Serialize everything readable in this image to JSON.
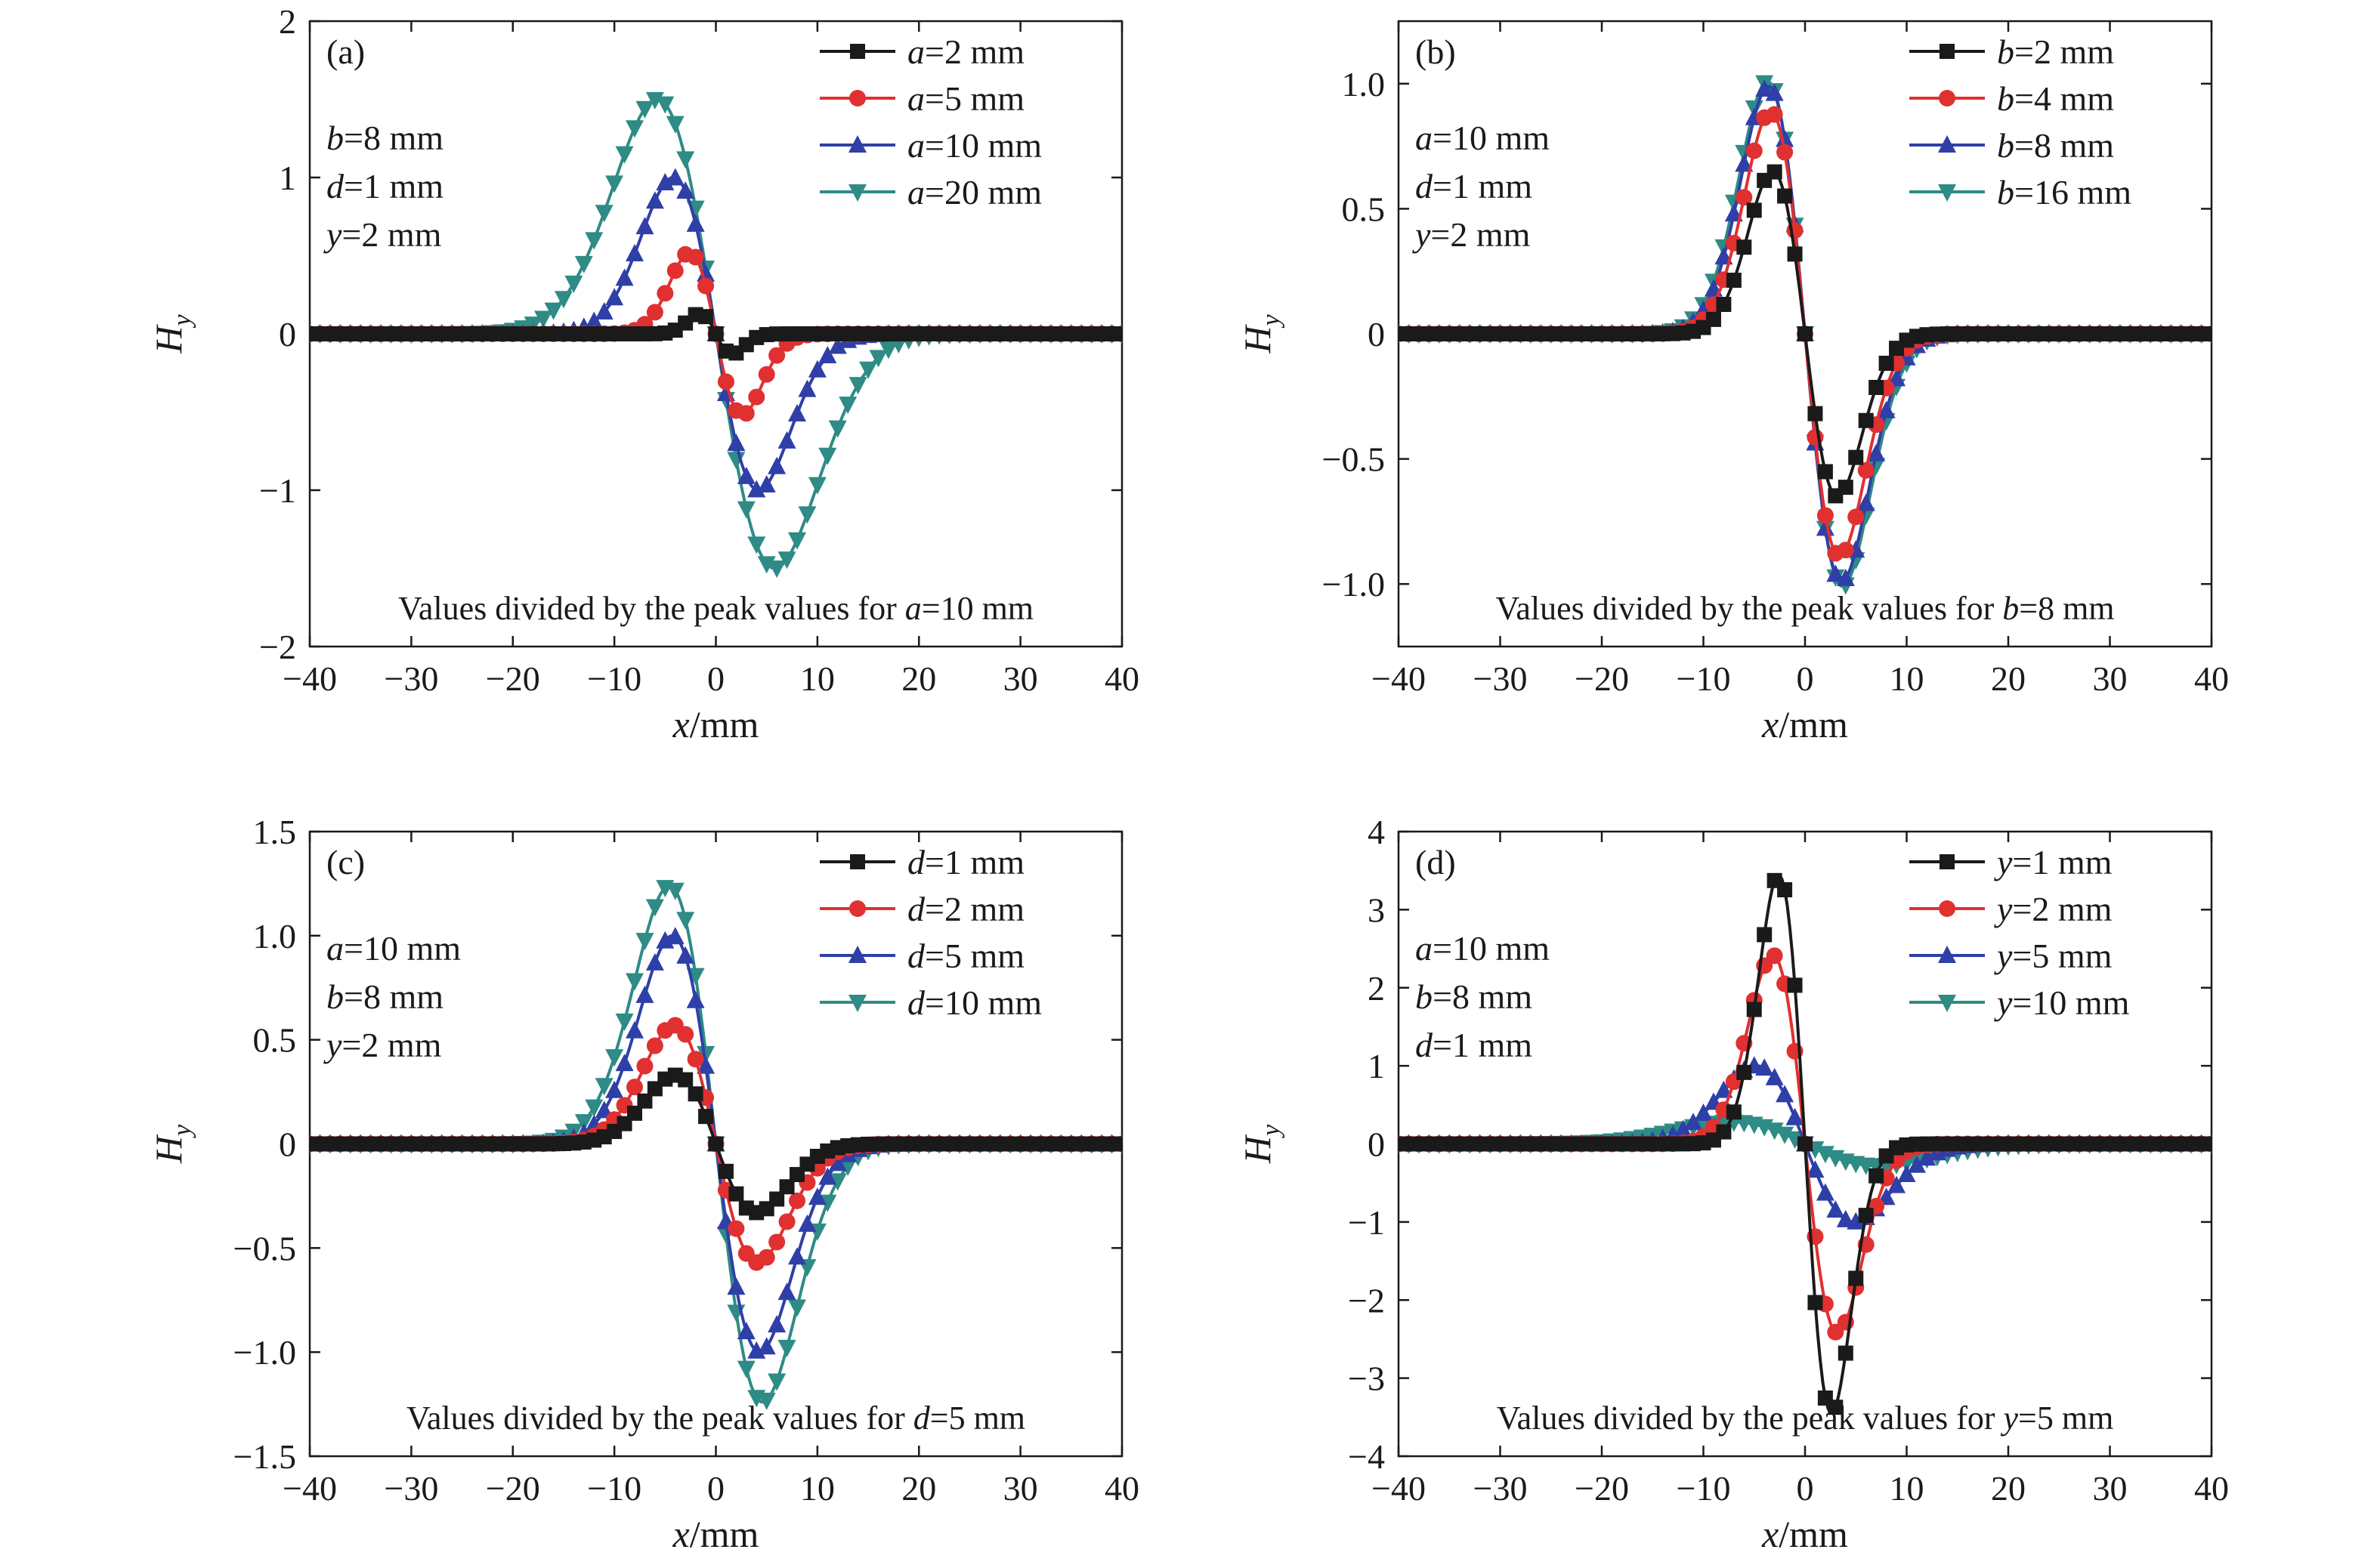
{
  "figure": {
    "xlabel_italic": "x",
    "xlabel_rest": "/mm",
    "ylabel_main": "H",
    "ylabel_sub": "y"
  },
  "chart_data": [
    {
      "type": "line",
      "panel": "(a)",
      "xlabel": "x/mm",
      "ylabel": "Hy",
      "xlim": [
        -40,
        40
      ],
      "ylim": [
        -2,
        2
      ],
      "xticks": [
        -40,
        -30,
        -20,
        -10,
        0,
        10,
        20,
        30,
        40
      ],
      "xtick_labels": [
        "−40",
        "−30",
        "−20",
        "−10",
        "0",
        "10",
        "20",
        "30",
        "40"
      ],
      "yticks": [
        -2,
        -1,
        0,
        1,
        2
      ],
      "ytick_labels": [
        "−2",
        "−1",
        "0",
        "1",
        "2"
      ],
      "params": [
        {
          "var": "b",
          "rest": "=8 mm"
        },
        {
          "var": "d",
          "rest": "=1 mm"
        },
        {
          "var": "y",
          "rest": "=2 mm"
        }
      ],
      "note": {
        "prefix": "Values divided by the peak values for ",
        "var": "a",
        "rest": "=10 mm"
      },
      "legend_position": "top-right",
      "series": [
        {
          "var": "a",
          "rest": "=2 mm",
          "color": "#1a1a1a",
          "marker": "square",
          "peak": 0.13,
          "px": 1.6,
          "w": 2.4
        },
        {
          "var": "a",
          "rest": "=5 mm",
          "color": "#e03030",
          "marker": "circle",
          "peak": 0.52,
          "px": 2.6,
          "w": 3.4
        },
        {
          "var": "a",
          "rest": "=10 mm",
          "color": "#2f3fa8",
          "marker": "triangle-up",
          "peak": 1.0,
          "px": 4.2,
          "w": 5.6
        },
        {
          "var": "a",
          "rest": "=20 mm",
          "color": "#2e8b85",
          "marker": "triangle-down",
          "peak": 1.5,
          "px": 5.8,
          "w": 8.5
        }
      ]
    },
    {
      "type": "line",
      "panel": "(b)",
      "xlabel": "x/mm",
      "ylabel": "Hy",
      "xlim": [
        -40,
        40
      ],
      "ylim": [
        -1.25,
        1.25
      ],
      "xticks": [
        -40,
        -30,
        -20,
        -10,
        0,
        10,
        20,
        30,
        40
      ],
      "xtick_labels": [
        "−40",
        "−30",
        "−20",
        "−10",
        "0",
        "10",
        "20",
        "30",
        "40"
      ],
      "yticks": [
        -1.0,
        -0.5,
        0,
        0.5,
        1.0
      ],
      "ytick_labels": [
        "−1.0",
        "−0.5",
        "0",
        "0.5",
        "1.0"
      ],
      "params": [
        {
          "var": "a",
          "rest": "=10 mm"
        },
        {
          "var": "d",
          "rest": "=1 mm"
        },
        {
          "var": "y",
          "rest": "=2 mm"
        }
      ],
      "note": {
        "prefix": "Values divided by the peak values for ",
        "var": "b",
        "rest": "=8 mm"
      },
      "legend_position": "top-right",
      "series": [
        {
          "var": "b",
          "rest": "=2 mm",
          "color": "#1a1a1a",
          "marker": "square",
          "peak": 0.65,
          "px": 3.2,
          "w": 4.2
        },
        {
          "var": "b",
          "rest": "=4 mm",
          "color": "#e03030",
          "marker": "circle",
          "peak": 0.89,
          "px": 3.4,
          "w": 4.6
        },
        {
          "var": "b",
          "rest": "=8 mm",
          "color": "#2f3fa8",
          "marker": "triangle-up",
          "peak": 0.99,
          "px": 3.6,
          "w": 4.9
        },
        {
          "var": "b",
          "rest": "=16 mm",
          "color": "#2e8b85",
          "marker": "triangle-down",
          "peak": 1.01,
          "px": 3.7,
          "w": 5.1
        }
      ]
    },
    {
      "type": "line",
      "panel": "(c)",
      "xlabel": "x/mm",
      "ylabel": "Hy",
      "xlim": [
        -40,
        40
      ],
      "ylim": [
        -1.5,
        1.5
      ],
      "xticks": [
        -40,
        -30,
        -20,
        -10,
        0,
        10,
        20,
        30,
        40
      ],
      "xtick_labels": [
        "−40",
        "−30",
        "−20",
        "−10",
        "0",
        "10",
        "20",
        "30",
        "40"
      ],
      "yticks": [
        -1.5,
        -1.0,
        -0.5,
        0,
        0.5,
        1.0,
        1.5
      ],
      "ytick_labels": [
        "−1.5",
        "−1.0",
        "−0.5",
        "0",
        "0.5",
        "1.0",
        "1.5"
      ],
      "params": [
        {
          "var": "a",
          "rest": "=10 mm"
        },
        {
          "var": "b",
          "rest": "=8 mm"
        },
        {
          "var": "y",
          "rest": "=2 mm"
        }
      ],
      "note": {
        "prefix": "Values divided by the peak values for ",
        "var": "d",
        "rest": "=5 mm"
      },
      "legend_position": "top-right",
      "series": [
        {
          "var": "d",
          "rest": "=1 mm",
          "color": "#1a1a1a",
          "marker": "square",
          "peak": 0.33,
          "px": 4.0,
          "w": 5.3
        },
        {
          "var": "d",
          "rest": "=2 mm",
          "color": "#e03030",
          "marker": "circle",
          "peak": 0.57,
          "px": 4.1,
          "w": 5.4
        },
        {
          "var": "d",
          "rest": "=5 mm",
          "color": "#2f3fa8",
          "marker": "triangle-up",
          "peak": 1.0,
          "px": 4.3,
          "w": 5.6
        },
        {
          "var": "d",
          "rest": "=10 mm",
          "color": "#2e8b85",
          "marker": "triangle-down",
          "peak": 1.24,
          "px": 4.6,
          "w": 6.0
        }
      ]
    },
    {
      "type": "line",
      "panel": "(d)",
      "xlabel": "x/mm",
      "ylabel": "Hy",
      "xlim": [
        -40,
        40
      ],
      "ylim": [
        -4,
        4
      ],
      "xticks": [
        -40,
        -30,
        -20,
        -10,
        0,
        10,
        20,
        30,
        40
      ],
      "xtick_labels": [
        "−40",
        "−30",
        "−20",
        "−10",
        "0",
        "10",
        "20",
        "30",
        "40"
      ],
      "yticks": [
        -4,
        -3,
        -2,
        -1,
        0,
        1,
        2,
        3,
        4
      ],
      "ytick_labels": [
        "−4",
        "−3",
        "−2",
        "−1",
        "0",
        "1",
        "2",
        "3",
        "4"
      ],
      "params": [
        {
          "var": "a",
          "rest": "=10 mm"
        },
        {
          "var": "b",
          "rest": "=8 mm"
        },
        {
          "var": "d",
          "rest": "=1 mm"
        }
      ],
      "note": {
        "prefix": "Values divided by the peak values for ",
        "var": "y",
        "rest": "=5 mm"
      },
      "legend_position": "top-right",
      "series": [
        {
          "var": "y",
          "rest": "=1 mm",
          "color": "#1a1a1a",
          "marker": "square",
          "peak": 3.45,
          "px": 2.6,
          "w": 3.6
        },
        {
          "var": "y",
          "rest": "=2 mm",
          "color": "#e03030",
          "marker": "circle",
          "peak": 2.42,
          "px": 3.2,
          "w": 4.3
        },
        {
          "var": "y",
          "rest": "=5 mm",
          "color": "#2f3fa8",
          "marker": "triangle-up",
          "peak": 1.0,
          "px": 4.8,
          "w": 6.4
        },
        {
          "var": "y",
          "rest": "=10 mm",
          "color": "#2e8b85",
          "marker": "triangle-down",
          "peak": 0.28,
          "px": 7.2,
          "w": 9.5
        }
      ]
    }
  ]
}
